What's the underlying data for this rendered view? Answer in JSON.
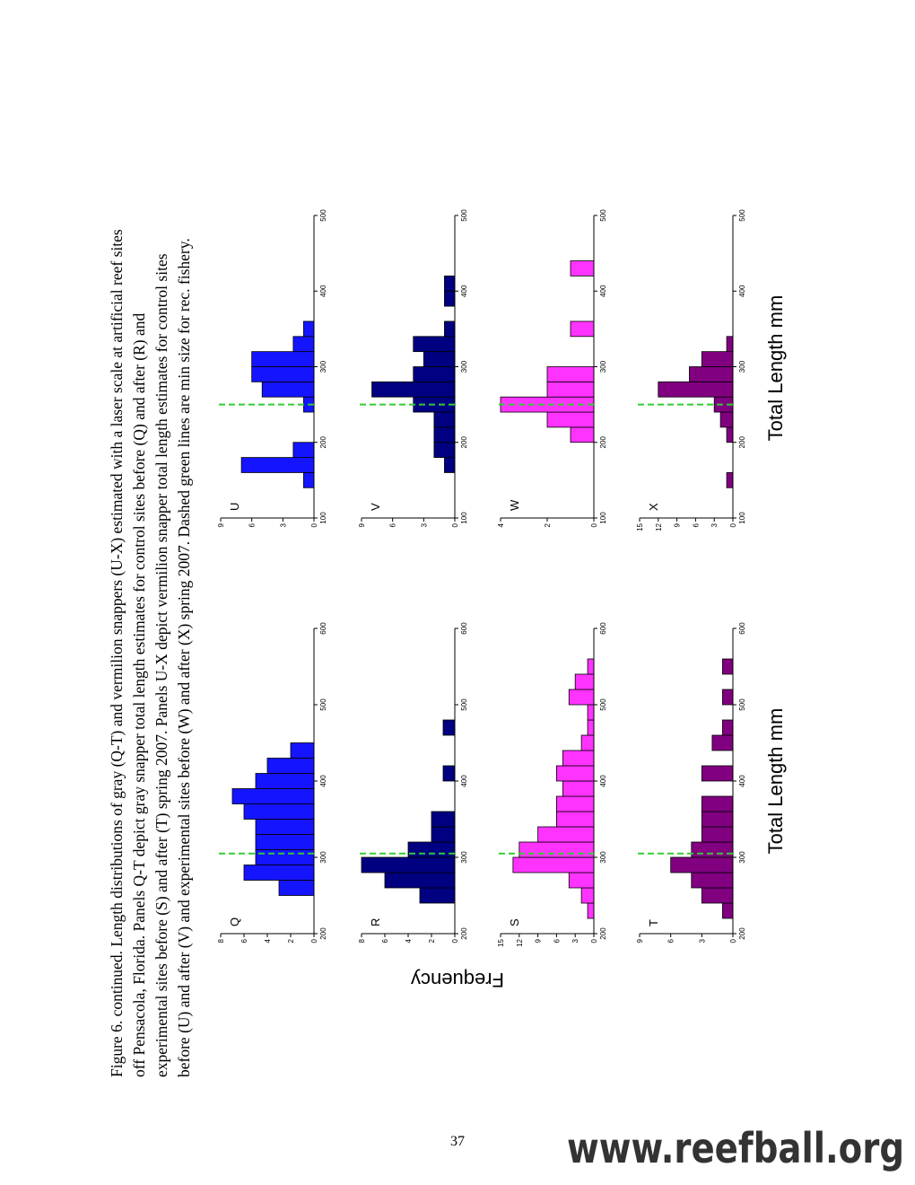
{
  "caption": [
    "Figure 6. continued. Length distributions of gray (Q-T) and vermilion snappers (U-X) estimated with a laser scale at artificial reef sites",
    "off Pensacola, Florida. Panels Q-T depict gray snapper total length estimates for control sites before (Q) and after (R) and",
    "experimental sites before (S) and after (T) spring 2007. Panels U-X depict vermilion snapper total length estimates for control sites",
    "before (U) and after (V) and experimental sites before (W) and after (X) spring 2007.  Dashed green lines are min size for rec. fishery."
  ],
  "shared_labels": {
    "y": "Frequency",
    "x_left": "Total Length mm",
    "x_right": "Total Length mm"
  },
  "page_number": "37",
  "watermark": "www.reefball.org",
  "chart_data": [
    {
      "type": "histogram",
      "label": "Q",
      "color": "#1414ff",
      "bins": [
        250,
        270,
        290,
        310,
        330,
        350,
        370,
        390,
        410,
        430,
        450
      ],
      "values": [
        3,
        6,
        5,
        5,
        5,
        6,
        7,
        5,
        4,
        2
      ],
      "xlim": [
        200,
        600
      ],
      "xticks": [
        200,
        300,
        400,
        500,
        600
      ],
      "ylim": [
        0,
        8
      ],
      "yticks": [
        0,
        2,
        4,
        6,
        8
      ],
      "reference_line": 305
    },
    {
      "type": "histogram",
      "label": "R",
      "color": "#000080",
      "bins": [
        240,
        260,
        280,
        300,
        320,
        340,
        360,
        380,
        400,
        420,
        440,
        460,
        480
      ],
      "values": [
        3,
        6,
        8,
        4,
        2,
        2,
        0,
        0,
        1,
        0,
        0,
        1
      ],
      "xlim": [
        200,
        600
      ],
      "xticks": [
        200,
        300,
        400,
        500,
        600
      ],
      "ylim": [
        0,
        8
      ],
      "yticks": [
        0,
        2,
        4,
        6,
        8
      ],
      "reference_line": 305
    },
    {
      "type": "histogram",
      "label": "S",
      "color": "#ff33ff",
      "bins": [
        220,
        240,
        260,
        280,
        300,
        320,
        340,
        360,
        380,
        400,
        420,
        440,
        460,
        480,
        500,
        520,
        540,
        560
      ],
      "values": [
        1,
        2,
        4,
        13,
        12,
        9,
        6,
        6,
        5,
        6,
        5,
        2,
        1,
        1,
        4,
        3,
        1
      ],
      "xlim": [
        200,
        600
      ],
      "xticks": [
        200,
        300,
        400,
        500,
        600
      ],
      "ylim": [
        0,
        15
      ],
      "yticks": [
        0,
        3,
        6,
        9,
        12,
        15
      ],
      "reference_line": 305
    },
    {
      "type": "histogram",
      "label": "T",
      "color": "#800080",
      "bins": [
        220,
        240,
        260,
        280,
        300,
        320,
        340,
        360,
        380,
        400,
        420,
        440,
        460,
        480,
        500,
        520,
        540,
        560
      ],
      "values": [
        1,
        3,
        4,
        6,
        4,
        3,
        3,
        3,
        0,
        3,
        0,
        2,
        1,
        0,
        1,
        0,
        1
      ],
      "xlim": [
        200,
        600
      ],
      "xticks": [
        200,
        300,
        400,
        500,
        600
      ],
      "ylim": [
        0,
        9
      ],
      "yticks": [
        0,
        3,
        6,
        9
      ],
      "reference_line": 305
    },
    {
      "type": "histogram",
      "label": "U",
      "color": "#1414ff",
      "bins": [
        140,
        160,
        180,
        200,
        220,
        240,
        260,
        280,
        300,
        320,
        340,
        360
      ],
      "values": [
        1,
        7,
        2,
        0,
        0,
        1,
        5,
        6,
        6,
        2,
        1
      ],
      "xlim": [
        100,
        500
      ],
      "xticks": [
        100,
        200,
        300,
        400,
        500
      ],
      "ylim": [
        0,
        9
      ],
      "yticks": [
        0,
        3,
        6,
        9
      ],
      "reference_line": 250
    },
    {
      "type": "histogram",
      "label": "V",
      "color": "#000080",
      "bins": [
        160,
        180,
        200,
        220,
        240,
        260,
        280,
        300,
        320,
        340,
        360,
        380,
        400,
        420
      ],
      "values": [
        1,
        2,
        2,
        2,
        4,
        8,
        4,
        3,
        4,
        1,
        0,
        1,
        1
      ],
      "xlim": [
        100,
        500
      ],
      "xticks": [
        100,
        200,
        300,
        400,
        500
      ],
      "ylim": [
        0,
        9
      ],
      "yticks": [
        0,
        3,
        6,
        9
      ],
      "reference_line": 250
    },
    {
      "type": "histogram",
      "label": "W",
      "color": "#ff33ff",
      "bins": [
        200,
        220,
        240,
        260,
        280,
        300,
        320,
        340,
        360,
        380,
        400,
        420,
        440
      ],
      "values": [
        1,
        2,
        4,
        2,
        2,
        0,
        0,
        1,
        0,
        0,
        0,
        1
      ],
      "xlim": [
        100,
        500
      ],
      "xticks": [
        100,
        200,
        300,
        400,
        500
      ],
      "ylim": [
        0,
        4
      ],
      "yticks": [
        0,
        2,
        4
      ],
      "reference_line": 250
    },
    {
      "type": "histogram",
      "label": "X",
      "color": "#800080",
      "bins": [
        140,
        160,
        180,
        200,
        220,
        240,
        260,
        280,
        300,
        320,
        340
      ],
      "values": [
        1,
        0,
        0,
        1,
        2,
        3,
        12,
        7,
        5,
        1
      ],
      "xlim": [
        100,
        500
      ],
      "xticks": [
        100,
        200,
        300,
        400,
        500
      ],
      "ylim": [
        0,
        15
      ],
      "yticks": [
        0,
        3,
        6,
        9,
        12,
        15
      ],
      "reference_line": 250
    }
  ]
}
